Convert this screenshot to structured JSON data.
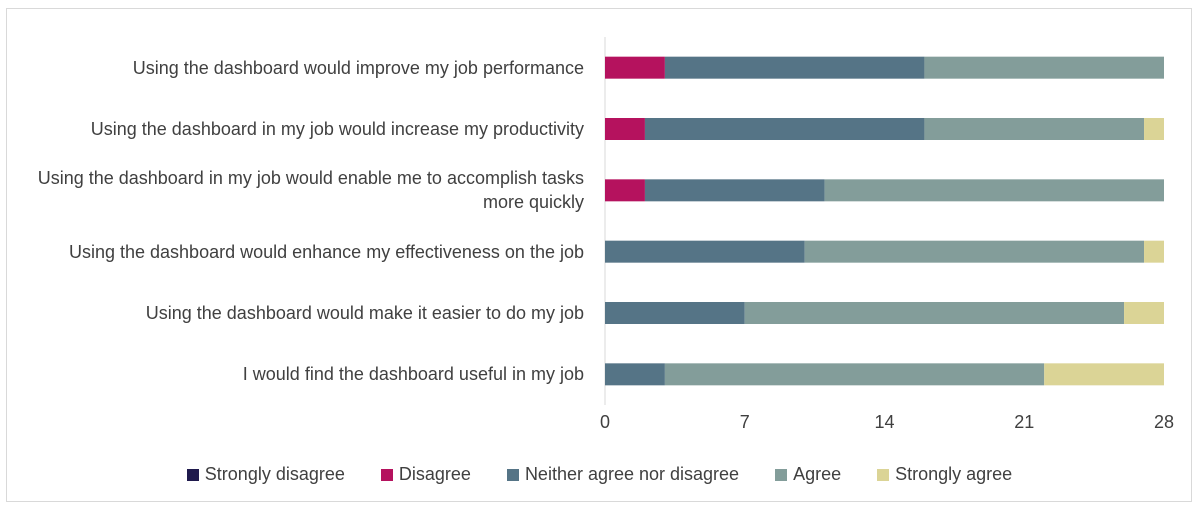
{
  "chart_data": {
    "type": "bar",
    "orientation": "horizontal",
    "stacked": true,
    "categories": [
      "Using the dashboard would improve my job performance",
      "Using the dashboard in my job would increase my productivity",
      "Using the dashboard in my job would enable me to accomplish tasks more quickly",
      "Using the dashboard would enhance my effectiveness on the job",
      "Using the dashboard would make it easier to do my job",
      "I would find the dashboard useful in my job"
    ],
    "series": [
      {
        "name": "Strongly disagree",
        "color": "#1f1a4d",
        "values": [
          0,
          0,
          0,
          0,
          0,
          0
        ]
      },
      {
        "name": "Disagree",
        "color": "#b5125e",
        "values": [
          3,
          2,
          2,
          0,
          0,
          0
        ]
      },
      {
        "name": "Neither agree nor disagree",
        "color": "#557486",
        "values": [
          13,
          14,
          9,
          10,
          7,
          3
        ]
      },
      {
        "name": "Agree",
        "color": "#839d9a",
        "values": [
          12,
          11,
          17,
          17,
          19,
          19
        ]
      },
      {
        "name": "Strongly agree",
        "color": "#dbd496",
        "values": [
          0,
          1,
          0,
          1,
          2,
          6
        ]
      }
    ],
    "xticks": [
      "0",
      "7",
      "14",
      "21",
      "28"
    ],
    "xlim": [
      0,
      28
    ],
    "grid": false,
    "legend_position": "bottom",
    "title": "",
    "xlabel": "",
    "ylabel": ""
  }
}
